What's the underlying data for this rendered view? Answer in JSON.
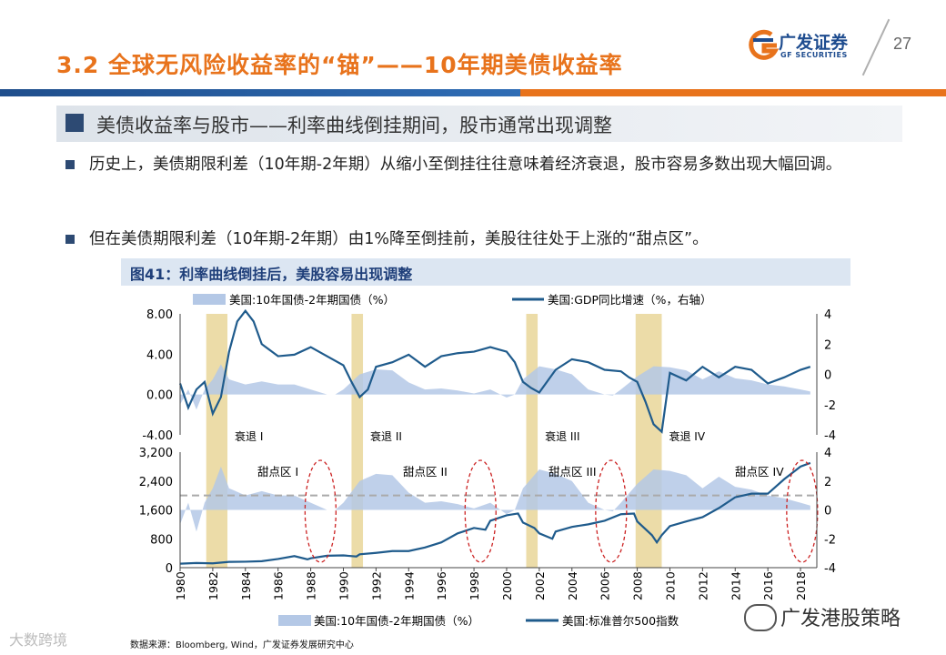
{
  "header": {
    "title": "3.2 全球无风险收益率的“锚”——10年期美债收益率",
    "logo_cn": "广发证券",
    "logo_en": "GF SECURITIES",
    "page_number": "27"
  },
  "subheading": "美债收益率与股市——利率曲线倒挂期间，股市通常出现调整",
  "bullets": [
    "历史上，美债期限利差（10年期-2年期）从缩小至倒挂往往意味着经济衰退，股市容易多数出现大幅回调。",
    "但在美债期限利差（10年期-2年期）由1%降至倒挂前，美股往往处于上涨的“甜点区”。"
  ],
  "figure": {
    "title": "图41：利率曲线倒挂后，美股容易出现调整",
    "source": "数据来源：Bloomberg, Wind，广发证券发展研究中心"
  },
  "watermark": {
    "left": "大数跨境",
    "right": "广发港股策略"
  },
  "colors": {
    "accent": "#e8731c",
    "brand": "#1f4e8c",
    "spread_fill": "#b4c8e6",
    "line": "#1f5b8c",
    "recession_band": "#ecdca8",
    "ellipse": "#cc2222"
  },
  "chart_data": [
    {
      "type": "area",
      "legend": [
        "美国:10年国债-2年期国债（%）",
        "美国:GDP同比增速（%，右轴）"
      ],
      "ylim_left": [
        -4,
        8
      ],
      "yticks_left": [
        "8.00",
        "4.00",
        "0.00",
        "-4.00"
      ],
      "ylim_right": [
        -4,
        4
      ],
      "yticks_right": [
        "4",
        "2",
        "0",
        "-2",
        "-4"
      ],
      "recessions": [
        {
          "label": "衰退 I",
          "start": 1981.6,
          "end": 1982.9
        },
        {
          "label": "衰退 II",
          "start": 1990.5,
          "end": 1991.2
        },
        {
          "label": "衰退 III",
          "start": 2001.2,
          "end": 2001.9
        },
        {
          "label": "衰退 IV",
          "start": 2007.9,
          "end": 2009.5
        }
      ],
      "spread_series": {
        "name": "美国:10年国债-2年期国债（%）",
        "x": [
          1980,
          1980.5,
          1981,
          1981.5,
          1982,
          1982.5,
          1983,
          1984,
          1985,
          1986,
          1987,
          1988,
          1989,
          1989.5,
          1990,
          1991,
          1992,
          1993,
          1994,
          1995,
          1996,
          1997,
          1998,
          1999,
          2000,
          2000.5,
          2001,
          2002,
          2003,
          2004,
          2005,
          2006,
          2006.5,
          2007,
          2008,
          2009,
          2010,
          2011,
          2012,
          2013,
          2014,
          2015,
          2016,
          2017,
          2018,
          2018.6
        ],
        "y": [
          -1.0,
          0.5,
          -1.5,
          0.5,
          1.5,
          3.0,
          1.5,
          1.0,
          1.3,
          1.0,
          1.0,
          0.5,
          0.0,
          0.0,
          0.5,
          2.0,
          2.5,
          2.4,
          1.2,
          0.5,
          0.6,
          0.4,
          0.1,
          0.5,
          -0.3,
          0.0,
          1.5,
          2.8,
          2.5,
          2.0,
          0.5,
          0.0,
          -0.1,
          0.5,
          1.8,
          2.8,
          2.7,
          2.4,
          1.5,
          2.3,
          1.6,
          1.4,
          1.0,
          0.8,
          0.5,
          0.3
        ]
      },
      "gdp_series": {
        "name": "美国:GDP同比增速（%，右轴）",
        "x": [
          1980,
          1980.5,
          1981,
          1981.5,
          1982,
          1982.5,
          1983,
          1983.5,
          1984,
          1984.5,
          1985,
          1986,
          1987,
          1988,
          1989,
          1990,
          1990.5,
          1991,
          1991.5,
          1992,
          1993,
          1994,
          1995,
          1996,
          1997,
          1998,
          1999,
          2000,
          2000.5,
          2001,
          2001.5,
          2002,
          2003,
          2004,
          2005,
          2006,
          2007,
          2007.5,
          2008,
          2008.5,
          2009,
          2009.5,
          2010,
          2011,
          2012,
          2013,
          2014,
          2015,
          2016,
          2017,
          2018,
          2018.6
        ],
        "y": [
          -0.6,
          -2.2,
          -1.0,
          -0.5,
          -2.6,
          -1.5,
          1.5,
          3.5,
          4.2,
          3.5,
          2.0,
          1.2,
          1.3,
          1.8,
          1.2,
          0.6,
          -0.5,
          -1.5,
          -1.0,
          0.5,
          0.8,
          1.3,
          0.5,
          1.2,
          1.4,
          1.5,
          1.8,
          1.5,
          0.8,
          -0.5,
          -0.9,
          -1.2,
          0.3,
          1.0,
          0.8,
          0.3,
          0.2,
          -0.2,
          -0.5,
          -1.8,
          -3.3,
          -3.8,
          0.1,
          -0.4,
          0.5,
          -0.2,
          0.5,
          0.3,
          -0.6,
          -0.2,
          0.3,
          0.5
        ]
      }
    },
    {
      "type": "line",
      "legend": [
        "美国:10年国债-2年期国债（%）",
        "美国:标准普尔500指数"
      ],
      "ylim_left": [
        0,
        3200
      ],
      "yticks_left": [
        "3,200",
        "2,400",
        "1,600",
        "800",
        "0"
      ],
      "ylim_right": [
        -4,
        4
      ],
      "yticks_right": [
        "4",
        "2",
        "0",
        "-2",
        "-4"
      ],
      "xticks": [
        "1980",
        "1982",
        "1984",
        "1986",
        "1988",
        "1990",
        "1992",
        "1994",
        "1996",
        "1998",
        "2000",
        "2002",
        "2004",
        "2006",
        "2008",
        "2010",
        "2012",
        "2014",
        "2016",
        "2018"
      ],
      "reference_line_right": 1,
      "sweet_spots": [
        {
          "label": "甜点区 I",
          "center": 1988.6
        },
        {
          "label": "甜点区 II",
          "center": 1998.4
        },
        {
          "label": "甜点区 III",
          "center": 2006.4
        },
        {
          "label": "甜点区 IV",
          "center": 2018.1
        }
      ],
      "sp500_series": {
        "name": "美国:标准普尔500指数",
        "x": [
          1980,
          1981,
          1982,
          1983,
          1984,
          1985,
          1986,
          1987,
          1987.8,
          1988,
          1989,
          1990,
          1990.8,
          1991,
          1992,
          1993,
          1994,
          1995,
          1996,
          1997,
          1998,
          1998.7,
          1999,
          2000,
          2000.7,
          2001,
          2001.7,
          2002,
          2002.8,
          2003,
          2004,
          2005,
          2006,
          2007,
          2007.8,
          2008,
          2008.9,
          2009.2,
          2009.5,
          2010,
          2011,
          2012,
          2013,
          2014,
          2015,
          2016,
          2017,
          2018,
          2018.6
        ],
        "y": [
          110,
          130,
          120,
          160,
          165,
          180,
          240,
          320,
          230,
          260,
          330,
          340,
          310,
          370,
          410,
          460,
          460,
          560,
          700,
          950,
          1100,
          1050,
          1300,
          1450,
          1500,
          1250,
          1100,
          950,
          800,
          1000,
          1130,
          1200,
          1300,
          1480,
          1500,
          1280,
          900,
          700,
          900,
          1150,
          1280,
          1400,
          1650,
          1950,
          2050,
          2050,
          2450,
          2800,
          2900
        ]
      },
      "spread_series": {
        "name": "美国:10年国债-2年期国债（%）",
        "x": [
          1980,
          1980.5,
          1981,
          1981.5,
          1982,
          1982.5,
          1983,
          1984,
          1985,
          1986,
          1987,
          1988,
          1989,
          1989.5,
          1990,
          1991,
          1992,
          1993,
          1994,
          1995,
          1996,
          1997,
          1998,
          1999,
          2000,
          2000.5,
          2001,
          2002,
          2003,
          2004,
          2005,
          2006,
          2006.5,
          2007,
          2008,
          2009,
          2010,
          2011,
          2012,
          2013,
          2014,
          2015,
          2016,
          2017,
          2018,
          2018.6
        ],
        "y": [
          -1.0,
          0.5,
          -1.5,
          0.5,
          1.5,
          3.0,
          1.5,
          1.0,
          1.3,
          1.0,
          1.0,
          0.5,
          0.0,
          0.0,
          0.5,
          2.0,
          2.5,
          2.4,
          1.2,
          0.5,
          0.6,
          0.4,
          0.1,
          0.5,
          -0.3,
          0.0,
          1.5,
          2.8,
          2.5,
          2.0,
          0.5,
          0.0,
          -0.1,
          0.5,
          1.8,
          2.8,
          2.7,
          2.4,
          1.5,
          2.3,
          1.6,
          1.4,
          1.0,
          0.8,
          0.5,
          0.3
        ]
      }
    }
  ]
}
